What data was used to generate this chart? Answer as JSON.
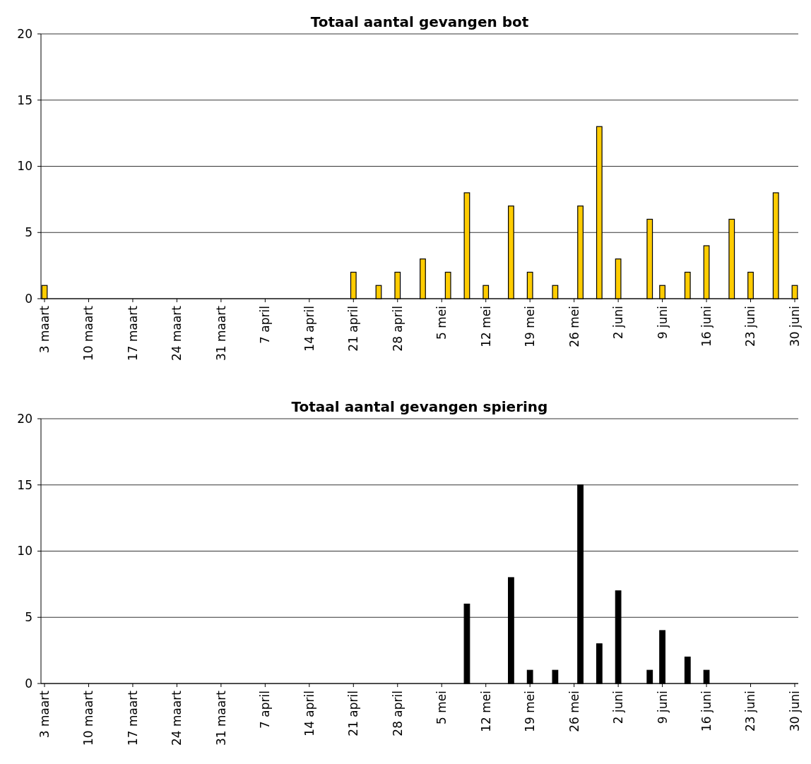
{
  "chart_data": [
    {
      "type": "bar",
      "title": "Totaal aantal gevangen bot",
      "x": [
        "--03-03",
        "--04-21",
        "--04-25",
        "--04-28",
        "--05-02",
        "--05-06",
        "--05-09",
        "--05-12",
        "--05-16",
        "--05-19",
        "--05-23",
        "--05-27",
        "--05-30",
        "--06-02",
        "--06-07",
        "--06-09",
        "--06-13",
        "--06-16",
        "--06-20",
        "--06-23",
        "--06-27",
        "--06-30"
      ],
      "values": [
        1,
        2,
        1,
        2,
        3,
        2,
        8,
        1,
        7,
        2,
        1,
        7,
        13,
        3,
        6,
        1,
        2,
        4,
        6,
        2,
        8,
        1
      ],
      "color": "#ffcc00",
      "xlim": [
        "--03-03",
        "--06-30"
      ],
      "xticks": [
        {
          "value": "--03-03",
          "label": "3 maart"
        },
        {
          "value": "--03-10",
          "label": "10 maart"
        },
        {
          "value": "--03-17",
          "label": "17 maart"
        },
        {
          "value": "--03-24",
          "label": "24 maart"
        },
        {
          "value": "--03-31",
          "label": "31 maart"
        },
        {
          "value": "--04-07",
          "label": "7 april"
        },
        {
          "value": "--04-14",
          "label": "14 april"
        },
        {
          "value": "--04-21",
          "label": "21 april"
        },
        {
          "value": "--04-28",
          "label": "28 april"
        },
        {
          "value": "--05-05",
          "label": "5 mei"
        },
        {
          "value": "--05-12",
          "label": "12 mei"
        },
        {
          "value": "--05-19",
          "label": "19 mei"
        },
        {
          "value": "--05-26",
          "label": "26 mei"
        },
        {
          "value": "--06-02",
          "label": "2 juni"
        },
        {
          "value": "--06-09",
          "label": "9 juni"
        },
        {
          "value": "--06-16",
          "label": "16 juni"
        },
        {
          "value": "--06-23",
          "label": "23 juni"
        },
        {
          "value": "--06-30",
          "label": "30 juni"
        }
      ],
      "ylim": [
        0,
        20
      ],
      "yticks": [
        0,
        5,
        10,
        15,
        20
      ],
      "grid": "y"
    },
    {
      "type": "bar",
      "title": "Totaal aantal gevangen spiering",
      "x": [
        "--05-09",
        "--05-16",
        "--05-19",
        "--05-23",
        "--05-27",
        "--05-30",
        "--06-02",
        "--06-07",
        "--06-09",
        "--06-13",
        "--06-16"
      ],
      "values": [
        6,
        8,
        1,
        1,
        15,
        3,
        7,
        1,
        4,
        2,
        1
      ],
      "color": "#000000",
      "xlim": [
        "--03-03",
        "--06-30"
      ],
      "xticks": [
        {
          "value": "--03-03",
          "label": "3 maart"
        },
        {
          "value": "--03-10",
          "label": "10 maart"
        },
        {
          "value": "--03-17",
          "label": "17 maart"
        },
        {
          "value": "--03-24",
          "label": "24 maart"
        },
        {
          "value": "--03-31",
          "label": "31 maart"
        },
        {
          "value": "--04-07",
          "label": "7 april"
        },
        {
          "value": "--04-14",
          "label": "14 april"
        },
        {
          "value": "--04-21",
          "label": "21 april"
        },
        {
          "value": "--04-28",
          "label": "28 april"
        },
        {
          "value": "--05-05",
          "label": "5 mei"
        },
        {
          "value": "--05-12",
          "label": "12 mei"
        },
        {
          "value": "--05-19",
          "label": "19 mei"
        },
        {
          "value": "--05-26",
          "label": "26 mei"
        },
        {
          "value": "--06-02",
          "label": "2 juni"
        },
        {
          "value": "--06-09",
          "label": "9 juni"
        },
        {
          "value": "--06-16",
          "label": "16 juni"
        },
        {
          "value": "--06-23",
          "label": "23 juni"
        },
        {
          "value": "--06-30",
          "label": "30 juni"
        }
      ],
      "ylim": [
        0,
        20
      ],
      "yticks": [
        0,
        5,
        10,
        15,
        20
      ],
      "grid": "y"
    }
  ]
}
